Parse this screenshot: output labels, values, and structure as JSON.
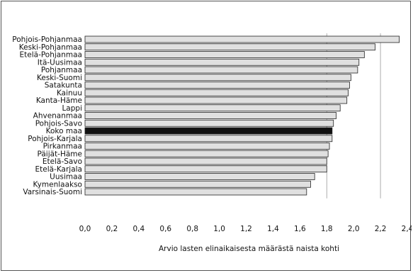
{
  "chart_data": {
    "type": "bar",
    "orientation": "horizontal",
    "xlabel": "Arvio lasten elinaikaisesta määrästä naista kohti",
    "xlim": [
      0,
      2.4
    ],
    "xticks": [
      "0,0",
      "0,2",
      "0,4",
      "0,6",
      "0,8",
      "1,0",
      "1,2",
      "1,4",
      "1,6",
      "1,8",
      "2,0",
      "2,2",
      "2,4"
    ],
    "reference_lines": [
      1.8,
      2.2
    ],
    "highlight_category": "Koko maa",
    "colors": {
      "bar": "#e0e0e0",
      "highlight": "#111111",
      "edge": "#222222"
    },
    "categories": [
      "Pohjois-Pohjanmaa",
      "Keski-Pohjanmaa",
      "Etelä-Pohjanmaa",
      "Itä-Uusimaa",
      "Pohjanmaa",
      "Keski-Suomi",
      "Satakunta",
      "Kainuu",
      "Kanta-Häme",
      "Lappi",
      "Ahvenanmaa",
      "Pohjois-Savo",
      "Koko maa",
      "Pohjois-Karjala",
      "Pirkanmaa",
      "Päijät-Häme",
      "Etelä-Savo",
      "Etelä-Karjala",
      "Uusimaa",
      "Kymenlaakso",
      "Varsinais-Suomi"
    ],
    "values": [
      2.34,
      2.16,
      2.08,
      2.04,
      2.03,
      1.98,
      1.97,
      1.96,
      1.95,
      1.9,
      1.87,
      1.85,
      1.84,
      1.84,
      1.82,
      1.81,
      1.8,
      1.8,
      1.71,
      1.68,
      1.65
    ]
  }
}
